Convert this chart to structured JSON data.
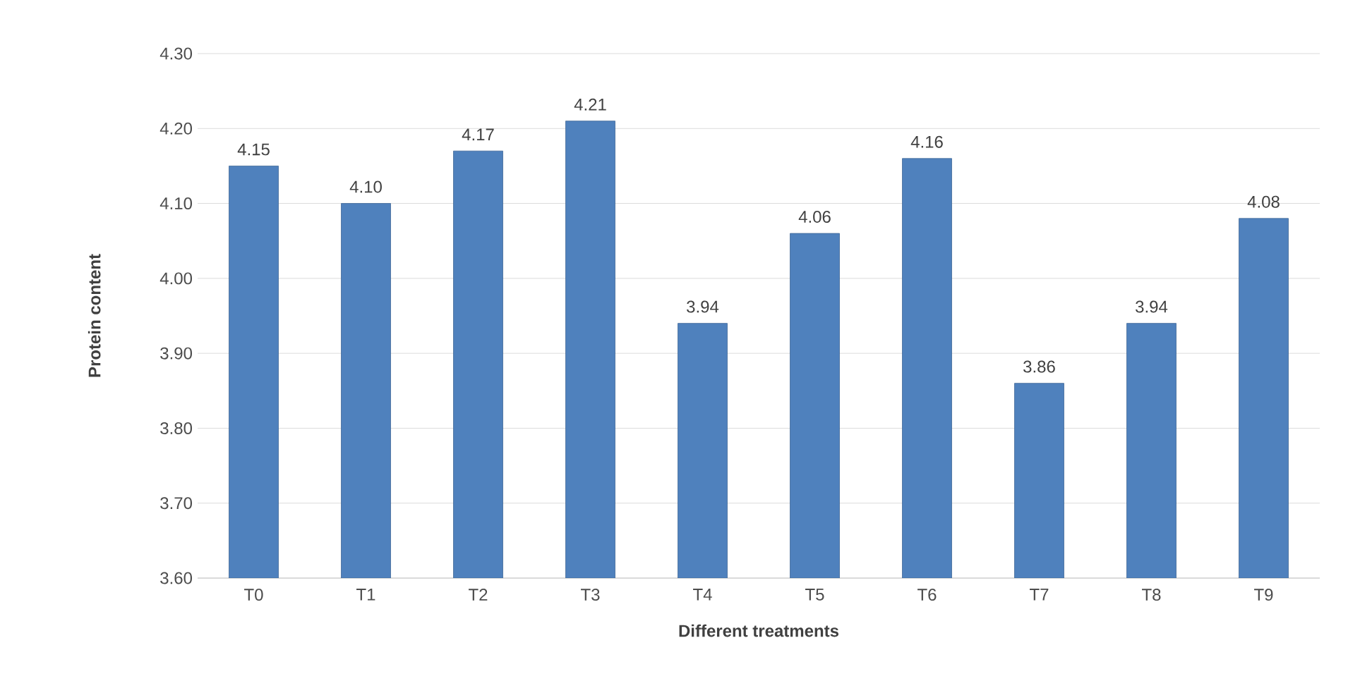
{
  "chart_data": {
    "type": "bar",
    "xlabel": "Different treatments",
    "ylabel": "Protein content",
    "categories": [
      "T0",
      "T1",
      "T2",
      "T3",
      "T4",
      "T5",
      "T6",
      "T7",
      "T8",
      "T9"
    ],
    "values": [
      4.15,
      4.1,
      4.17,
      4.21,
      3.94,
      4.06,
      4.16,
      3.86,
      3.94,
      4.08
    ],
    "value_labels": [
      "4.15",
      "4.10",
      "4.17",
      "4.21",
      "3.94",
      "4.06",
      "4.16",
      "3.86",
      "3.94",
      "4.08"
    ],
    "color": "#4f81bd",
    "ylim": [
      3.6,
      4.3
    ],
    "yticks": [
      {
        "value": 3.6,
        "label": "3.60"
      },
      {
        "value": 3.7,
        "label": "3.70"
      },
      {
        "value": 3.8,
        "label": "3.80"
      },
      {
        "value": 3.9,
        "label": "3.90"
      },
      {
        "value": 4.0,
        "label": "4.00"
      },
      {
        "value": 4.1,
        "label": "4.10"
      },
      {
        "value": 4.2,
        "label": "4.20"
      },
      {
        "value": 4.3,
        "label": "4.30"
      }
    ],
    "grid": "y"
  }
}
